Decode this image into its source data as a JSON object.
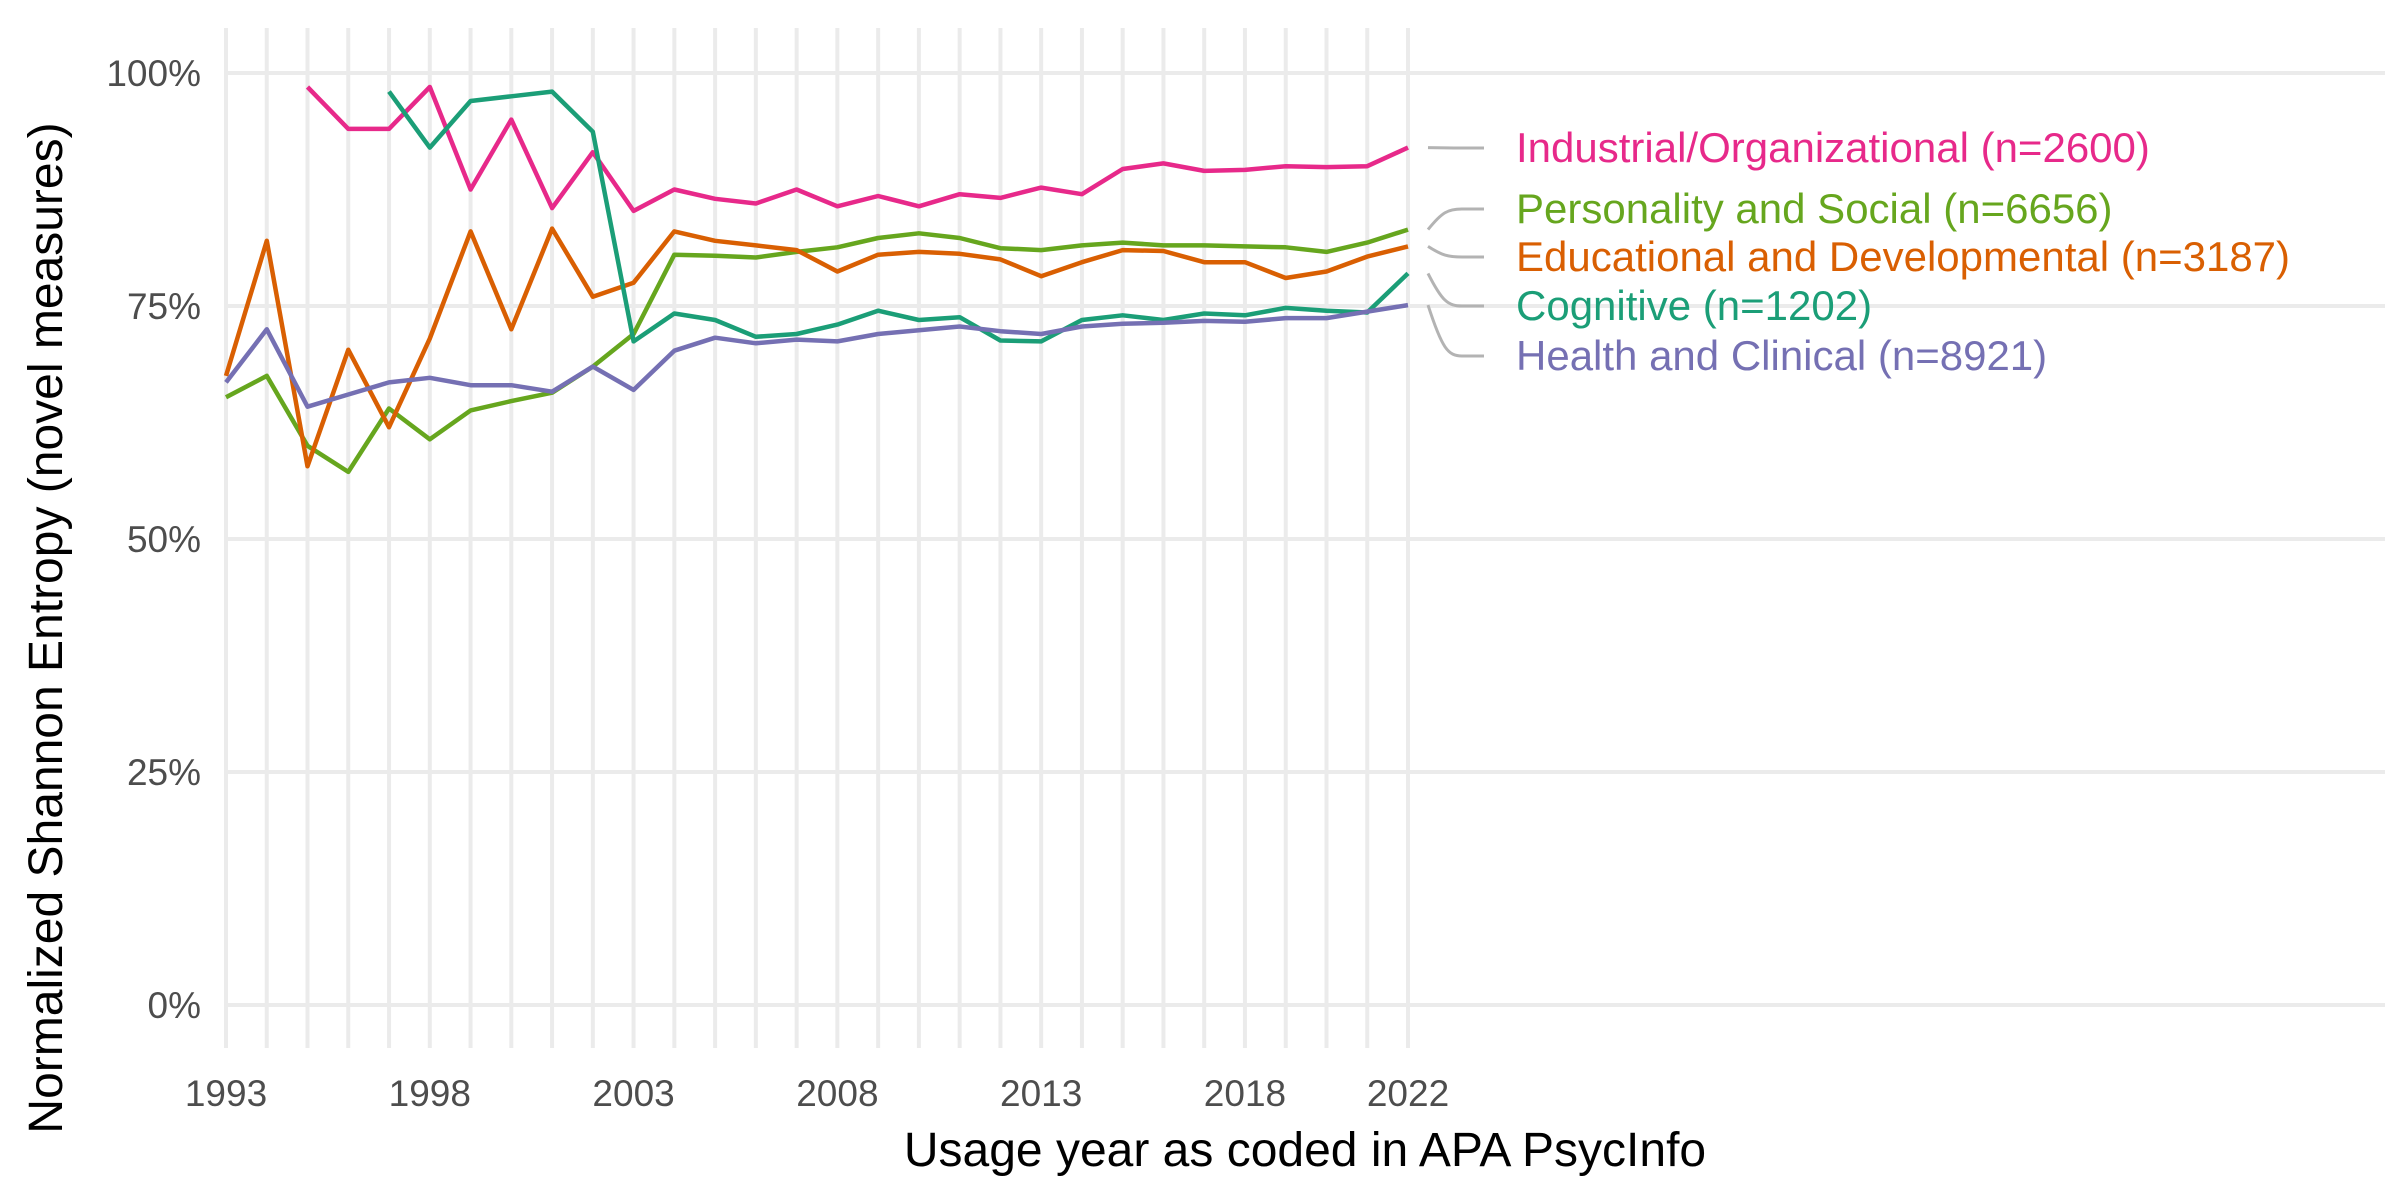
{
  "chart_data": {
    "type": "line",
    "title": "",
    "xlabel": "Usage year as coded in APA PsycInfo",
    "ylabel": "Normalized Shannon Entropy (novel measures)",
    "xlim": [
      1993,
      2022
    ],
    "ylim": [
      0,
      1
    ],
    "x_ticks": [
      1993,
      1998,
      2003,
      2008,
      2013,
      2018,
      2022
    ],
    "y_ticks": [
      {
        "value": 0,
        "label": "0%"
      },
      {
        "value": 0.25,
        "label": "25%"
      },
      {
        "value": 0.5,
        "label": "50%"
      },
      {
        "value": 0.75,
        "label": "75%"
      },
      {
        "value": 1,
        "label": "100%"
      }
    ],
    "grid": true,
    "legend": "right, direct labels",
    "series": [
      {
        "name": "Industrial/Organizational (n=2600)",
        "color": "#e7298a",
        "x": [
          1995,
          1996,
          1997,
          1998,
          1999,
          2000,
          2001,
          2002,
          2003,
          2004,
          2005,
          2006,
          2007,
          2008,
          2009,
          2010,
          2011,
          2012,
          2013,
          2014,
          2015,
          2016,
          2017,
          2018,
          2019,
          2020,
          2021,
          2022
        ],
        "values": [
          0.985,
          0.94,
          0.94,
          0.985,
          0.875,
          0.95,
          0.855,
          0.915,
          0.852,
          0.875,
          0.865,
          0.86,
          0.875,
          0.857,
          0.868,
          0.857,
          0.87,
          0.866,
          0.877,
          0.87,
          0.897,
          0.903,
          0.895,
          0.896,
          0.9,
          0.899,
          0.9,
          0.92
        ]
      },
      {
        "name": "Personality and Social (n=6656)",
        "color": "#66a61e",
        "x": [
          1993,
          1994,
          1995,
          1996,
          1997,
          1998,
          1999,
          2000,
          2001,
          2002,
          2003,
          2004,
          2005,
          2006,
          2007,
          2008,
          2009,
          2010,
          2011,
          2012,
          2013,
          2014,
          2015,
          2016,
          2017,
          2018,
          2019,
          2020,
          2021,
          2022
        ],
        "values": [
          0.652,
          0.675,
          0.6,
          0.572,
          0.64,
          0.607,
          0.638,
          0.648,
          0.657,
          0.685,
          0.72,
          0.805,
          0.804,
          0.802,
          0.808,
          0.813,
          0.823,
          0.828,
          0.823,
          0.812,
          0.81,
          0.815,
          0.818,
          0.815,
          0.815,
          0.814,
          0.813,
          0.808,
          0.818,
          0.832
        ]
      },
      {
        "name": "Educational and Developmental (n=3187)",
        "color": "#d95f02",
        "x": [
          1993,
          1994,
          1995,
          1996,
          1997,
          1998,
          1999,
          2000,
          2001,
          2002,
          2003,
          2004,
          2005,
          2006,
          2007,
          2008,
          2009,
          2010,
          2011,
          2012,
          2013,
          2014,
          2015,
          2016,
          2017,
          2018,
          2019,
          2020,
          2021,
          2022
        ],
        "values": [
          0.675,
          0.82,
          0.578,
          0.703,
          0.62,
          0.715,
          0.83,
          0.725,
          0.833,
          0.76,
          0.775,
          0.83,
          0.82,
          0.815,
          0.81,
          0.787,
          0.805,
          0.808,
          0.806,
          0.8,
          0.782,
          0.797,
          0.81,
          0.809,
          0.797,
          0.797,
          0.78,
          0.787,
          0.803,
          0.814
        ]
      },
      {
        "name": "Cognitive (n=1202)",
        "color": "#1b9e77",
        "x": [
          1997,
          1998,
          1999,
          2000,
          2001,
          2002,
          2003,
          2004,
          2005,
          2006,
          2007,
          2008,
          2009,
          2010,
          2011,
          2012,
          2013,
          2014,
          2015,
          2016,
          2017,
          2018,
          2019,
          2020,
          2021,
          2022
        ],
        "values": [
          0.98,
          0.92,
          0.97,
          0.975,
          0.98,
          0.937,
          0.712,
          0.742,
          0.735,
          0.717,
          0.72,
          0.73,
          0.745,
          0.735,
          0.738,
          0.713,
          0.712,
          0.735,
          0.74,
          0.735,
          0.742,
          0.74,
          0.748,
          0.745,
          0.743,
          0.785
        ]
      },
      {
        "name": "Health and Clinical (n=8921)",
        "color": "#7570b3",
        "x": [
          1993,
          1994,
          1995,
          1996,
          1997,
          1998,
          1999,
          2000,
          2001,
          2002,
          2003,
          2004,
          2005,
          2006,
          2007,
          2008,
          2009,
          2010,
          2011,
          2012,
          2013,
          2014,
          2015,
          2016,
          2017,
          2018,
          2019,
          2020,
          2021,
          2022
        ],
        "values": [
          0.668,
          0.725,
          0.642,
          0.655,
          0.668,
          0.673,
          0.665,
          0.665,
          0.658,
          0.685,
          0.66,
          0.702,
          0.716,
          0.71,
          0.714,
          0.712,
          0.72,
          0.724,
          0.728,
          0.723,
          0.72,
          0.728,
          0.731,
          0.732,
          0.734,
          0.733,
          0.737,
          0.737,
          0.744,
          0.751
        ]
      }
    ]
  }
}
